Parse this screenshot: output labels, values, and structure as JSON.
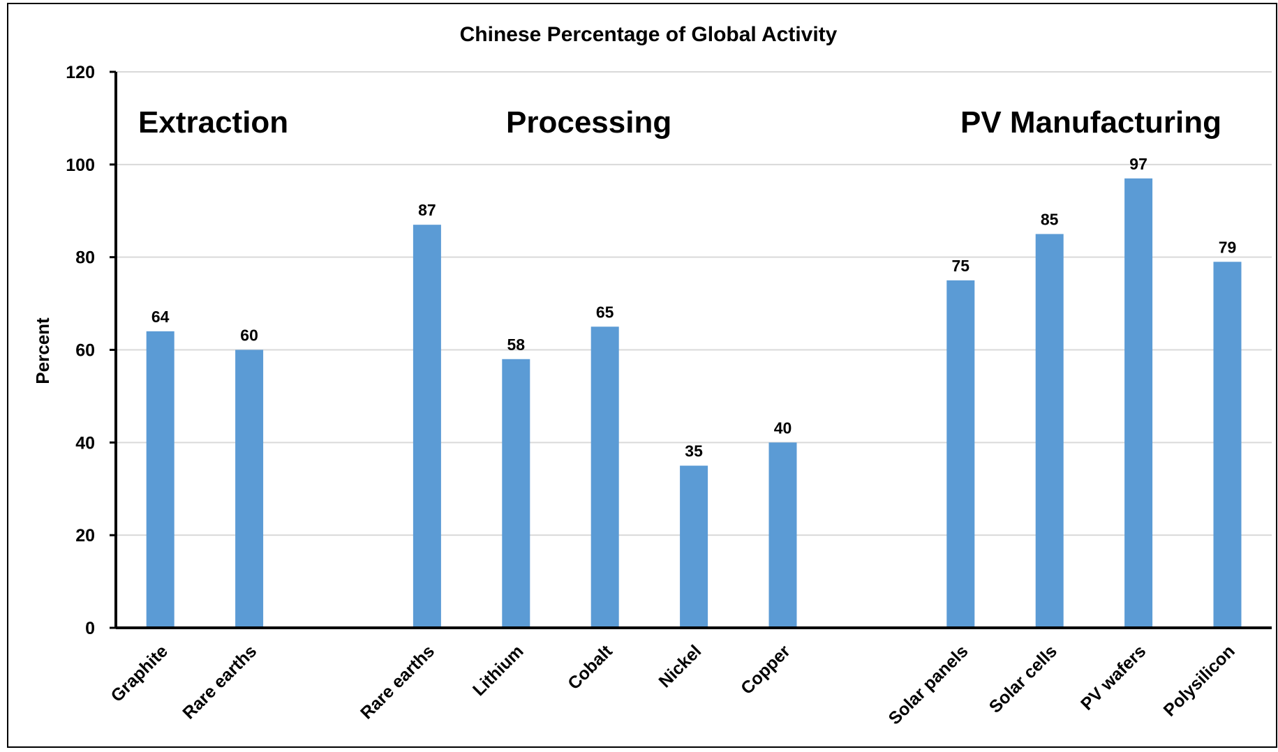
{
  "chart_data": {
    "type": "bar",
    "title": "Chinese Percentage of Global Activity",
    "xlabel": "",
    "ylabel": "Percent",
    "ylim": [
      0,
      120
    ],
    "yticks": [
      0,
      20,
      40,
      60,
      80,
      100,
      120
    ],
    "grid": true,
    "bar_color": "#5b9bd5",
    "groups": [
      {
        "label": "Extraction",
        "categories": [
          "Graphite",
          "Rare earths"
        ],
        "values": [
          64,
          60
        ]
      },
      {
        "label": "Processing",
        "categories": [
          "Rare earths",
          "Lithium",
          "Cobalt",
          "Nickel",
          "Copper"
        ],
        "values": [
          87,
          58,
          65,
          35,
          40
        ]
      },
      {
        "label": "PV Manufacturing",
        "categories": [
          "Solar panels",
          "Solar cells",
          "PV wafers",
          "Polysilicon"
        ],
        "values": [
          75,
          85,
          97,
          79
        ]
      }
    ],
    "categories": [
      "Graphite",
      "Rare earths",
      "",
      "Rare earths",
      "Lithium",
      "Cobalt",
      "Nickel",
      "Copper",
      "",
      "Solar panels",
      "Solar cells",
      "PV wafers",
      "Polysilicon"
    ],
    "values": [
      64,
      60,
      null,
      87,
      58,
      65,
      35,
      40,
      null,
      75,
      85,
      97,
      79
    ]
  }
}
